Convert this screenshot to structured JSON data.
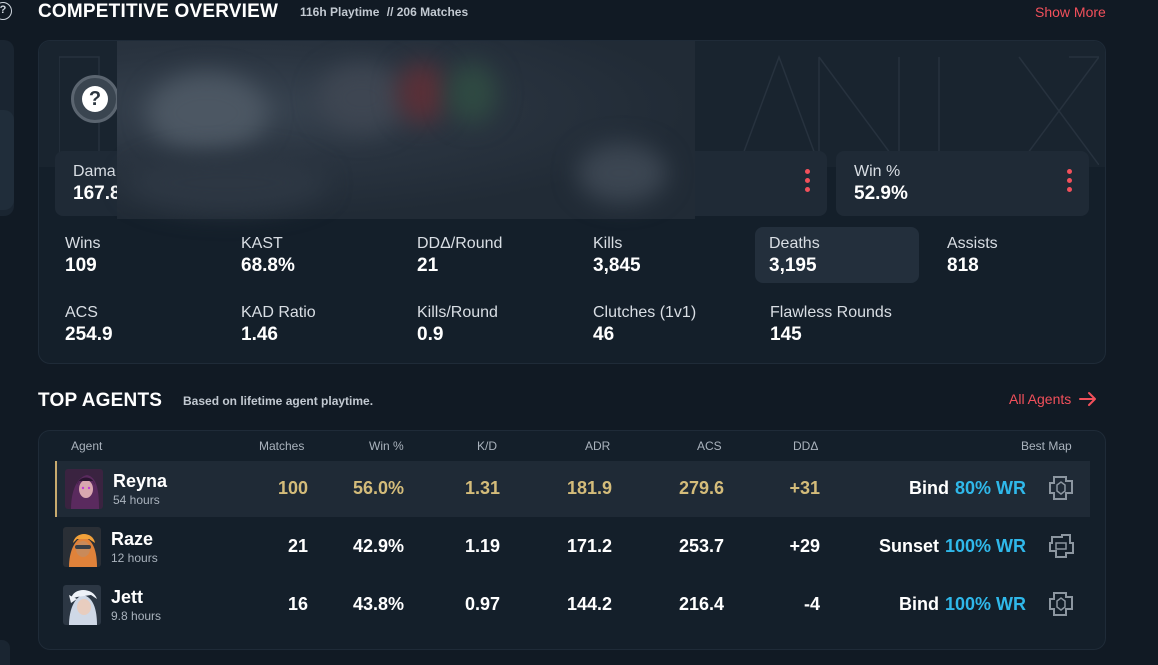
{
  "overview": {
    "title": "COMPETITIVE OVERVIEW",
    "playtime": "116h Playtime",
    "separator": "//",
    "matches": "206 Matches",
    "show_more": "Show More"
  },
  "top_stats": {
    "damage": {
      "label": "Dama",
      "value": "167.8"
    },
    "win_pct": {
      "label": "Win %",
      "value": "52.9%"
    }
  },
  "stats": [
    {
      "label": "Wins",
      "value": "109"
    },
    {
      "label": "KAST",
      "value": "68.8%"
    },
    {
      "label": "DDΔ/Round",
      "value": "21"
    },
    {
      "label": "Kills",
      "value": "3,845"
    },
    {
      "label": "Deaths",
      "value": "3,195"
    },
    {
      "label": "Assists",
      "value": "818"
    },
    {
      "label": "ACS",
      "value": "254.9"
    },
    {
      "label": "KAD Ratio",
      "value": "1.46"
    },
    {
      "label": "Kills/Round",
      "value": "0.9"
    },
    {
      "label": "Clutches (1v1)",
      "value": "46"
    },
    {
      "label": "Flawless Rounds",
      "value": "145"
    }
  ],
  "agents": {
    "title": "TOP AGENTS",
    "subtitle": "Based on lifetime agent playtime.",
    "all_agents": "All Agents",
    "headers": {
      "agent": "Agent",
      "matches": "Matches",
      "win": "Win %",
      "kd": "K/D",
      "adr": "ADR",
      "acs": "ACS",
      "dd": "DDΔ",
      "best_map": "Best Map"
    },
    "rows": [
      {
        "name": "Reyna",
        "hours": "54 hours",
        "matches": "100",
        "win": "56.0%",
        "kd": "1.31",
        "adr": "181.9",
        "acs": "279.6",
        "dd": "+31",
        "map": "Bind",
        "map_wr": "80% WR"
      },
      {
        "name": "Raze",
        "hours": "12 hours",
        "matches": "21",
        "win": "42.9%",
        "kd": "1.19",
        "adr": "171.2",
        "acs": "253.7",
        "dd": "+29",
        "map": "Sunset",
        "map_wr": "100% WR"
      },
      {
        "name": "Jett",
        "hours": "9.8 hours",
        "matches": "16",
        "win": "43.8%",
        "kd": "0.97",
        "adr": "144.2",
        "acs": "216.4",
        "dd": "-4",
        "map": "Bind",
        "map_wr": "100% WR"
      }
    ]
  },
  "colors": {
    "accent": "#f2505b",
    "gold": "#d4bc7a",
    "wr_blue": "#2fb8ea"
  },
  "icons": {
    "help": "question-circle-icon",
    "rank": "unranked-question-icon",
    "menu": "kebab-menu-icon",
    "arrow": "arrow-right-icon",
    "map": "map-icon"
  }
}
